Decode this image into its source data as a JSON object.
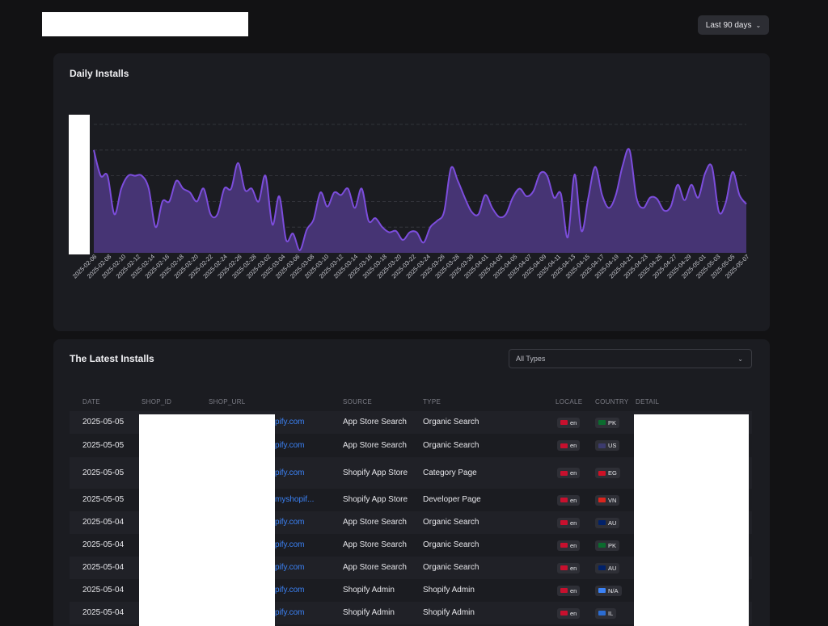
{
  "header": {
    "range_label": "Last 90 days",
    "range_chevron": "chevron-down-icon"
  },
  "chart_card": {
    "title": "Daily Installs"
  },
  "chart_data": {
    "type": "area",
    "title": "Daily Installs",
    "xlabel": "",
    "ylabel": "",
    "tick_labels": [
      "2025-02-06",
      "2025-02-08",
      "2025-02-10",
      "2025-02-12",
      "2025-02-14",
      "2025-02-16",
      "2025-02-18",
      "2025-02-20",
      "2025-02-22",
      "2025-02-24",
      "2025-02-26",
      "2025-02-28",
      "2025-03-02",
      "2025-03-04",
      "2025-03-06",
      "2025-03-08",
      "2025-03-10",
      "2025-03-12",
      "2025-03-14",
      "2025-03-16",
      "2025-03-18",
      "2025-03-20",
      "2025-03-22",
      "2025-03-24",
      "2025-03-26",
      "2025-03-28",
      "2025-03-30",
      "2025-04-01",
      "2025-04-03",
      "2025-04-05",
      "2025-04-07",
      "2025-04-09",
      "2025-04-11",
      "2025-04-13",
      "2025-04-15",
      "2025-04-17",
      "2025-04-19",
      "2025-04-21",
      "2025-04-23",
      "2025-04-25",
      "2025-04-27",
      "2025-04-29",
      "2025-05-01",
      "2025-05-03",
      "2025-05-05",
      "2025-05-07"
    ],
    "values": [
      7,
      5,
      5,
      2,
      4,
      5,
      5,
      5,
      4,
      1,
      3,
      3,
      4.6,
      4,
      3.7,
      3,
      4,
      2,
      2,
      4,
      4,
      6,
      3.9,
      4,
      3,
      5,
      1.2,
      3.4,
      0,
      0.5,
      -0.8,
      0.8,
      1.6,
      3.7,
      2.6,
      3.7,
      3.5,
      4,
      2.5,
      4,
      1.5,
      1.7,
      1,
      0.6,
      0.7,
      0,
      0.6,
      0.6,
      -0.2,
      1,
      1.5,
      2.2,
      5.6,
      4.6,
      3.3,
      2.2,
      2,
      3.5,
      2.5,
      1.8,
      2,
      3.3,
      4,
      3.4,
      3.8,
      5.2,
      5,
      3.3,
      3.6,
      0.2,
      5.1,
      0.7,
      3.3,
      5.7,
      3.5,
      2.5,
      3.5,
      5.8,
      7,
      3.3,
      2.5,
      3.3,
      3.2,
      2.3,
      2.6,
      4.3,
      3.1,
      4.3,
      3.3,
      5.2,
      5.7,
      2.2,
      2.9,
      5.3,
      3.5,
      2.8
    ],
    "ylim": [
      -1,
      9
    ],
    "grid": true,
    "colors": {
      "line": "#7c4ddc",
      "fill": "#463474",
      "grid": "#3a3b42"
    }
  },
  "table_card": {
    "title": "The Latest Installs",
    "filter_value": "All Types",
    "filter_chevron": "chevron-down-icon",
    "columns": [
      "DATE",
      "SHOP_ID",
      "SHOP_URL",
      "SOURCE",
      "TYPE",
      "LOCALE",
      "COUNTRY",
      "DETAIL"
    ],
    "rows": [
      {
        "date": "2025-05-05",
        "url": "pify.com",
        "source": "App Store Search",
        "type": "Organic Search",
        "locale": "en",
        "country": "PK"
      },
      {
        "date": "2025-05-05",
        "url": "pify.com",
        "source": "App Store Search",
        "type": "Organic Search",
        "locale": "en",
        "country": "US"
      },
      {
        "date": "2025-05-05",
        "url": "pify.com",
        "source": "Shopify App Store",
        "type": "Category Page",
        "locale": "en",
        "country": "EG"
      },
      {
        "date": "2025-05-05",
        "url": "myshopif...",
        "source": "Shopify App Store",
        "type": "Developer Page",
        "locale": "en",
        "country": "VN"
      },
      {
        "date": "2025-05-04",
        "url": "pify.com",
        "source": "App Store Search",
        "type": "Organic Search",
        "locale": "en",
        "country": "AU"
      },
      {
        "date": "2025-05-04",
        "url": "pify.com",
        "source": "App Store Search",
        "type": "Organic Search",
        "locale": "en",
        "country": "PK"
      },
      {
        "date": "2025-05-04",
        "url": "pify.com",
        "source": "App Store Search",
        "type": "Organic Search",
        "locale": "en",
        "country": "AU"
      },
      {
        "date": "2025-05-04",
        "url": "pify.com",
        "source": "Shopify Admin",
        "type": "Shopify Admin",
        "locale": "en",
        "country": "N/A"
      },
      {
        "date": "2025-05-04",
        "url": "pify.com",
        "source": "Shopify Admin",
        "type": "Shopify Admin",
        "locale": "en",
        "country": "IL"
      }
    ],
    "flag_colors": {
      "en": "#c8102e",
      "PK": "#0b6b2e",
      "US": "#3c3b6e",
      "EG": "#ce1126",
      "VN": "#da251d",
      "AU": "#012169",
      "N/A": "#3b82f6",
      "IL": "#2b6cd1"
    }
  }
}
